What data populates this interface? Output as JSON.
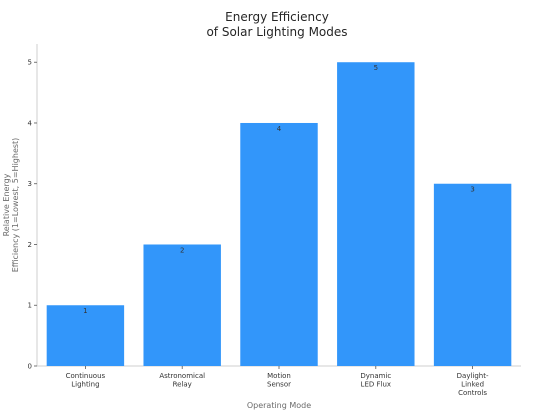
{
  "chart_data": {
    "type": "bar",
    "title_lines": [
      "Energy Efficiency",
      "of Solar Lighting Modes"
    ],
    "xlabel": "Operating Mode",
    "ylabel_lines": [
      "Relative Energy",
      "Efficiency (1=Lowest, 5=Highest)"
    ],
    "categories": [
      [
        "Continuous",
        "Lighting"
      ],
      [
        "Astronomical",
        "Relay"
      ],
      [
        "Motion",
        "Sensor"
      ],
      [
        "Dynamic",
        "LED Flux"
      ],
      [
        "Daylight-",
        "Linked",
        "Controls"
      ]
    ],
    "values": [
      1,
      2,
      4,
      5,
      3
    ],
    "data_labels": [
      "1",
      "2",
      "4",
      "5",
      "3"
    ],
    "yticks": [
      0,
      1,
      2,
      3,
      4,
      5
    ],
    "ylim": [
      0,
      5.3
    ],
    "grid": false,
    "bar_color": "#3296fa"
  }
}
